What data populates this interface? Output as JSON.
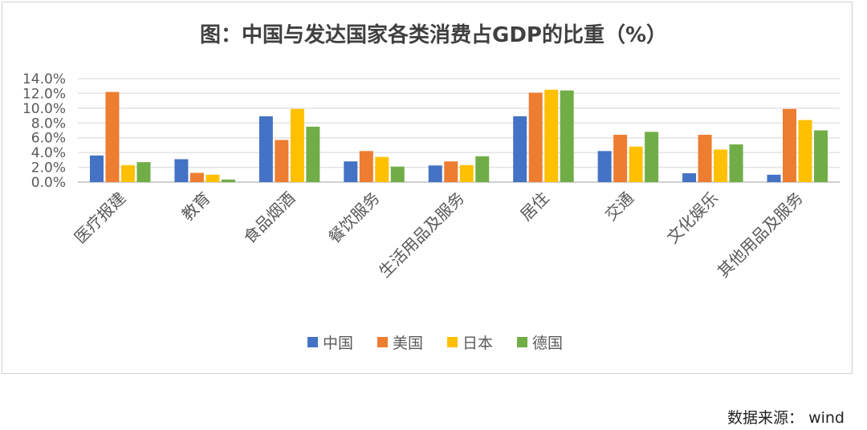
{
  "chart_data": {
    "type": "bar",
    "title": "图：中国与发达国家各类消费占GDP的比重（%）",
    "categories": [
      "医疗报建",
      "教育",
      "食品烟酒",
      "餐饮服务",
      "生活用品及服务",
      "居住",
      "交通",
      "文化娱乐",
      "其他用品及服务"
    ],
    "series": [
      {
        "name": "中国",
        "color": "#4472C4",
        "values": [
          3.6,
          3.1,
          8.9,
          2.8,
          2.25,
          8.9,
          4.2,
          1.2,
          1.0
        ]
      },
      {
        "name": "美国",
        "color": "#ED7D31",
        "values": [
          12.2,
          1.25,
          5.7,
          4.2,
          2.8,
          12.1,
          6.4,
          6.4,
          9.9
        ]
      },
      {
        "name": "日本",
        "color": "#FFC000",
        "values": [
          2.3,
          1.0,
          9.9,
          3.4,
          2.3,
          12.5,
          4.8,
          4.4,
          8.4
        ]
      },
      {
        "name": "德国",
        "color": "#70AD47",
        "values": [
          2.7,
          0.35,
          7.5,
          2.1,
          3.5,
          12.4,
          6.8,
          5.1,
          7.0
        ]
      }
    ],
    "yticks": [
      "0.0%",
      "2.0%",
      "4.0%",
      "6.0%",
      "8.0%",
      "10.0%",
      "12.0%",
      "14.0%"
    ],
    "ylim": [
      0,
      14
    ],
    "grid": true,
    "legend": "bottom",
    "xlabel": "",
    "ylabel": ""
  },
  "source": "数据来源：  wind"
}
